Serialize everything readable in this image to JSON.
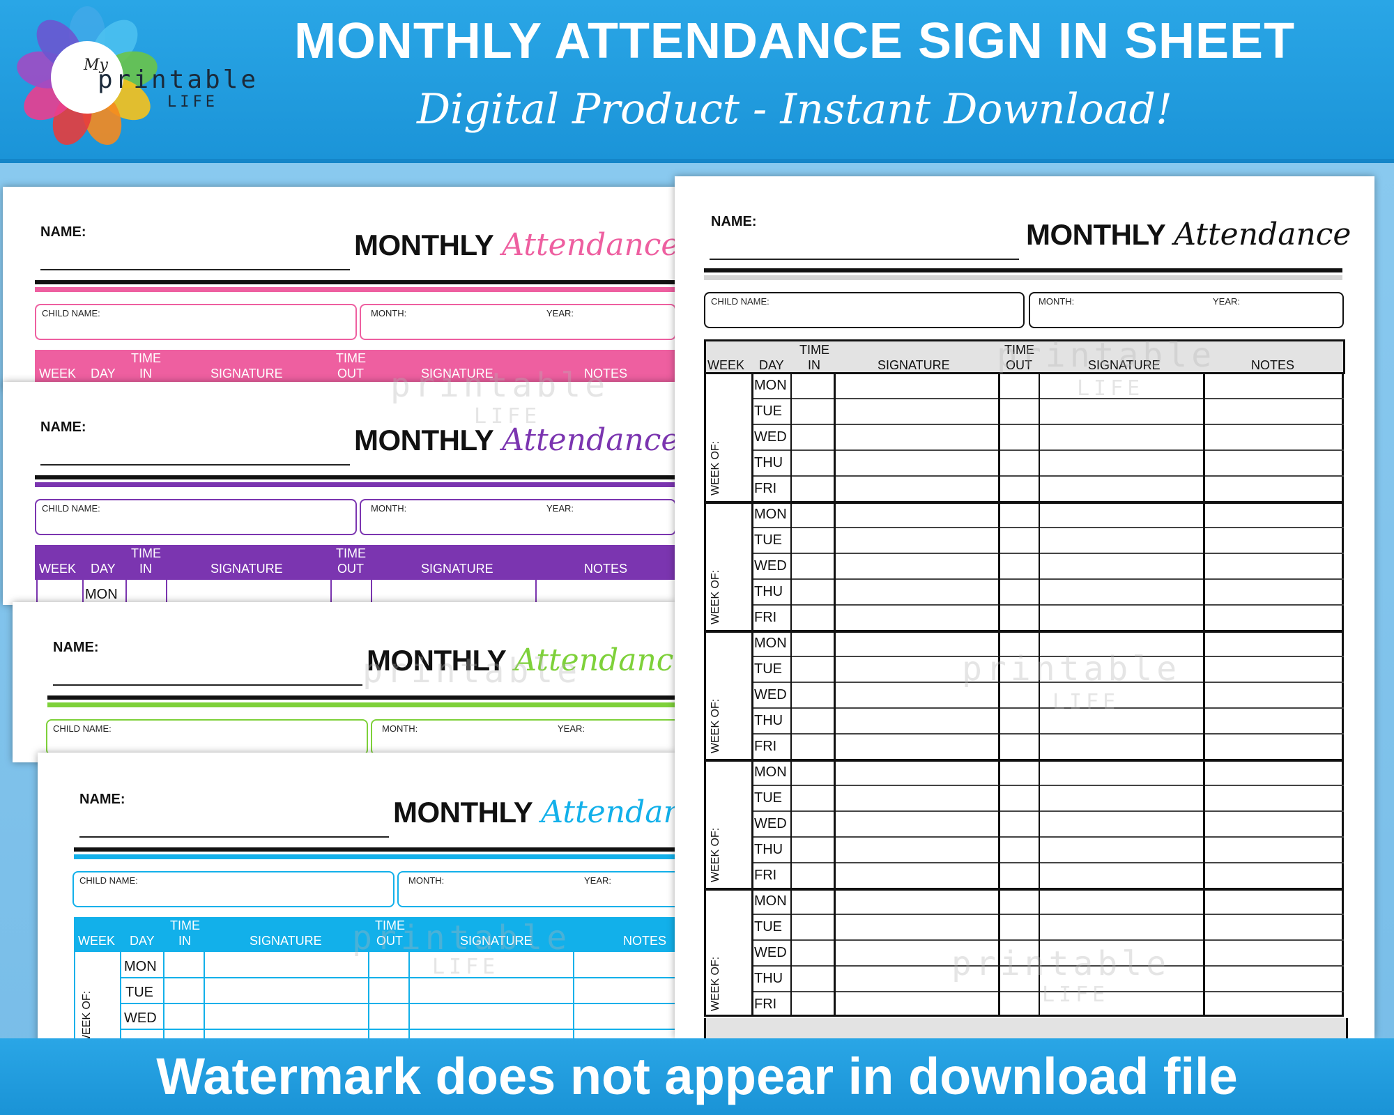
{
  "banner": {
    "title": "MONTHLY ATTENDANCE SIGN IN SHEET",
    "subtitle": "Digital Product - Instant Download!"
  },
  "logo": {
    "my": "My",
    "printable": "printable",
    "life": "LIFE"
  },
  "footer": {
    "text": "Watermark does not appear in download file"
  },
  "sheet": {
    "name_label": "NAME:",
    "title_bold": "MONTHLY",
    "title_script": "Attendance",
    "child_name_label": "CHILD NAME:",
    "month_label": "MONTH:",
    "year_label": "YEAR:",
    "columns": {
      "week": "WEEK",
      "day": "DAY",
      "time": "TIME",
      "in": "IN",
      "signature": "SIGNATURE",
      "out": "OUT",
      "notes": "NOTES"
    },
    "days": [
      "MON",
      "TUE",
      "WED",
      "THU",
      "FRI"
    ],
    "week_of": "WEEK OF:"
  },
  "watermark": {
    "printable": "printable",
    "life": "LIFE",
    "my": "My"
  },
  "colors": {
    "banner": "#1b94d8",
    "pink": "#ee5fa0",
    "purple": "#7b35b0",
    "green": "#7ed13a",
    "blue": "#12b0ea",
    "black": "#111111",
    "header_gray": "#e3e3e3"
  }
}
